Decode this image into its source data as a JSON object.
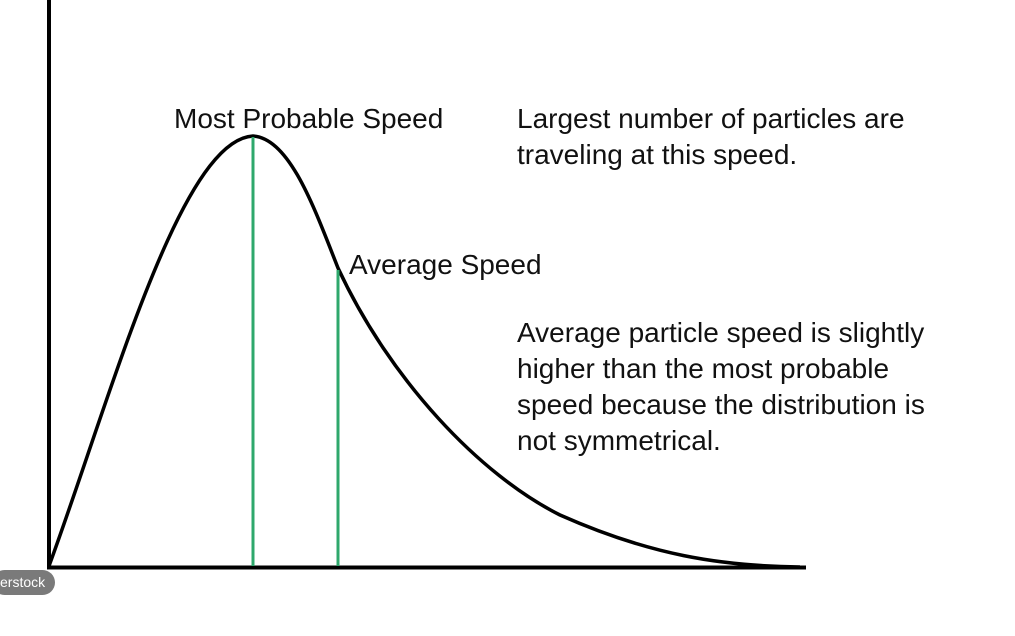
{
  "labels": {
    "peak": "Most Probable Speed",
    "average": "Average Speed"
  },
  "notes": {
    "peak": [
      "Largest number of particles are",
      "traveling at this speed."
    ],
    "average": [
      "Average particle speed is slightly",
      "higher than the most probable",
      "speed because the distribution is",
      "not symmetrical."
    ]
  },
  "watermark": "erstock",
  "colors": {
    "curve": "#000000",
    "axes": "#000000",
    "markers": "#2ea86c",
    "watermark_bg": "#7a7a7a"
  }
}
